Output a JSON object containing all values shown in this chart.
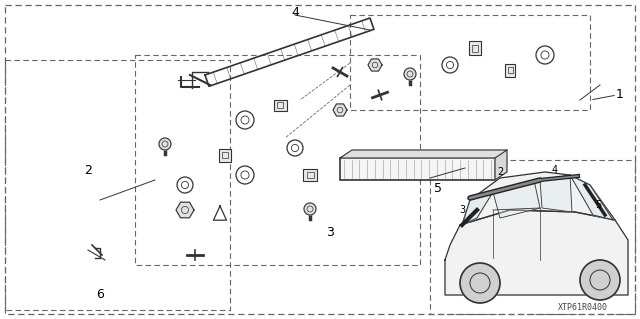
{
  "bg_color": "#ffffff",
  "line_color": "#333333",
  "dashed_color": "#666666",
  "label_color": "#000000",
  "watermark": "XTP61R0400",
  "figsize": [
    6.4,
    3.19
  ],
  "dpi": 100
}
